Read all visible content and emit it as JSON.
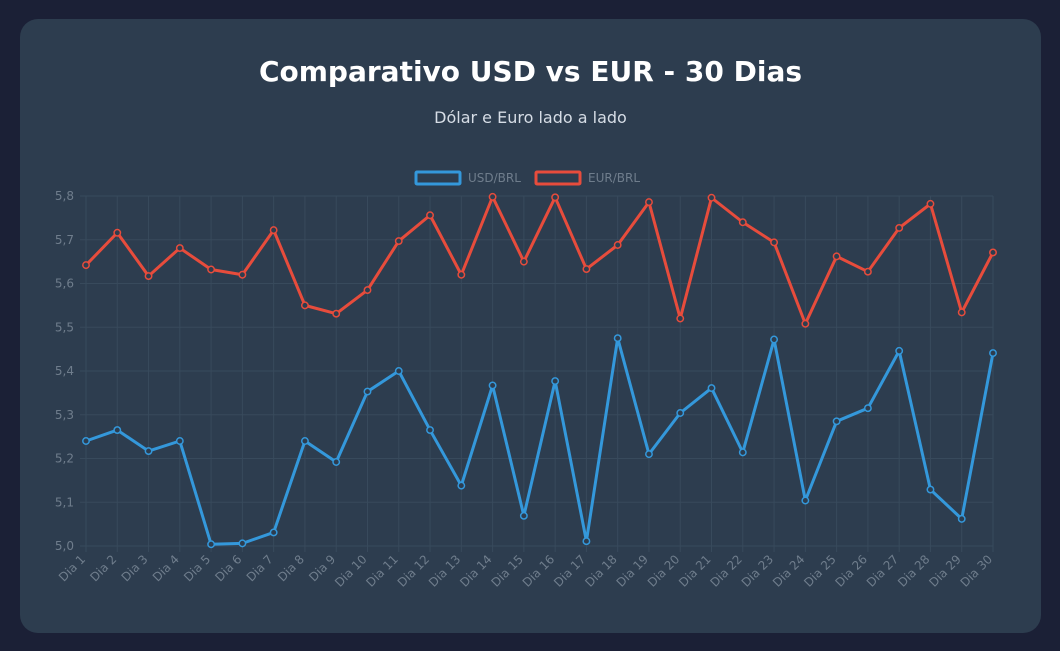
{
  "header": {
    "title": "Comparativo USD vs EUR - 30 Dias",
    "subtitle": "Dólar e Euro lado a lado"
  },
  "chart_data": {
    "type": "line",
    "categories": [
      "Dia 1",
      "Dia 2",
      "Dia 3",
      "Dia 4",
      "Dia 5",
      "Dia 6",
      "Dia 7",
      "Dia 8",
      "Dia 9",
      "Dia 10",
      "Dia 11",
      "Dia 12",
      "Dia 13",
      "Dia 14",
      "Dia 15",
      "Dia 16",
      "Dia 17",
      "Dia 18",
      "Dia 19",
      "Dia 20",
      "Dia 21",
      "Dia 22",
      "Dia 23",
      "Dia 24",
      "Dia 25",
      "Dia 26",
      "Dia 27",
      "Dia 28",
      "Dia 29",
      "Dia 30"
    ],
    "series": [
      {
        "name": "USD/BRL",
        "color": "#3498db",
        "values": [
          5.24,
          5.265,
          5.217,
          5.24,
          5.004,
          5.006,
          5.031,
          5.24,
          5.192,
          5.353,
          5.4,
          5.265,
          5.138,
          5.367,
          5.069,
          5.377,
          5.011,
          5.475,
          5.21,
          5.304,
          5.361,
          5.214,
          5.472,
          5.104,
          5.285,
          5.315,
          5.446,
          5.129,
          5.062,
          5.441
        ]
      },
      {
        "name": "EUR/BRL",
        "color": "#e74c3c",
        "values": [
          5.642,
          5.716,
          5.617,
          5.681,
          5.632,
          5.62,
          5.722,
          5.55,
          5.531,
          5.585,
          5.697,
          5.756,
          5.62,
          5.798,
          5.65,
          5.797,
          5.633,
          5.688,
          5.786,
          5.52,
          5.796,
          5.74,
          5.694,
          5.508,
          5.662,
          5.627,
          5.727,
          5.782,
          5.534,
          5.671
        ]
      }
    ],
    "ylim": [
      5.0,
      5.8
    ],
    "yticks": [
      "5,0",
      "5,1",
      "5,2",
      "5,3",
      "5,4",
      "5,5",
      "5,6",
      "5,7",
      "5,8"
    ],
    "grid": true,
    "legend": "top-center"
  }
}
